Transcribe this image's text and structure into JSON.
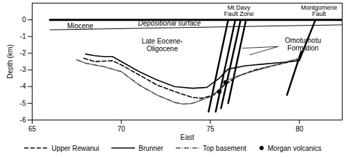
{
  "chart_data": {
    "type": "line",
    "x_label": "East",
    "y_label": "Depth (km)",
    "xlim": [
      65,
      82.4
    ],
    "ylim": [
      -6,
      1
    ],
    "xticks": [
      65,
      70,
      75,
      80
    ],
    "yticks": [
      0,
      -1,
      -2,
      -3,
      -4,
      -5,
      -6
    ],
    "grid": false,
    "series": [
      {
        "name": "Upper Rewanui",
        "color": "#000000",
        "line_style": "dashed",
        "type": "line",
        "x": [
          67.9,
          68.5,
          69.5,
          70,
          71,
          72,
          73,
          74,
          74.5,
          75.2,
          75.8,
          76.5,
          77.5,
          78.5,
          79.5,
          80
        ],
        "values": [
          -2.3,
          -2.5,
          -2.45,
          -2.7,
          -3.3,
          -3.9,
          -4.3,
          -4.65,
          -4.7,
          -4.5,
          -3.9,
          -3.4,
          -3.0,
          -2.75,
          -2.5,
          -2.4
        ]
      },
      {
        "name": "Brunner",
        "color": "#000000",
        "line_style": "solid",
        "type": "line",
        "x": [
          68,
          68.5,
          69,
          69.5,
          70,
          71,
          72,
          73,
          74,
          74.8,
          75.5,
          76,
          77,
          78,
          79,
          80
        ],
        "values": [
          -2.05,
          -2.15,
          -2.2,
          -2.2,
          -2.5,
          -3.1,
          -3.6,
          -4.0,
          -4.1,
          -4.05,
          -3.5,
          -2.95,
          -2.75,
          -2.65,
          -2.55,
          -2.45
        ]
      },
      {
        "name": "Top basement",
        "color": "#444444",
        "line_style": "dashdot",
        "type": "line",
        "x": [
          67.5,
          68,
          69,
          70,
          71,
          72,
          73,
          73.5,
          74,
          75,
          75.5,
          76,
          77,
          78,
          79,
          80
        ],
        "values": [
          -2.4,
          -2.6,
          -2.8,
          -3.1,
          -3.9,
          -4.5,
          -4.95,
          -5.05,
          -5.0,
          -4.6,
          -4.2,
          -3.6,
          -3.2,
          -2.9,
          -2.6,
          -2.3
        ]
      },
      {
        "name": "Morgan volcanics",
        "color": "#000000",
        "marker": "circle",
        "type": "scatter",
        "x": [
          75.5,
          75.85
        ],
        "values": [
          -4.3,
          -3.75
        ]
      }
    ],
    "boundaries": [
      {
        "label": "Depositional surface",
        "label_x": 72.7,
        "label_y": -0.2,
        "line_style": "bold",
        "x": [
          66,
          82.4
        ],
        "values": [
          0,
          0
        ]
      },
      {
        "line_style": "solid",
        "x": [
          66,
          82.4
        ],
        "values": [
          -0.6,
          -0.3
        ]
      }
    ],
    "faults": [
      {
        "label": "Mt Davy\nFault Zone",
        "label_x": 76.6,
        "label_y": 0.55,
        "lines": [
          [
            [
              74.9,
              -5.5
            ],
            [
              76.0,
              0
            ]
          ],
          [
            [
              75.3,
              -5.5
            ],
            [
              76.4,
              0
            ]
          ],
          [
            [
              75.6,
              -5.3
            ],
            [
              76.7,
              0
            ]
          ],
          [
            [
              76.0,
              -5.0
            ],
            [
              77.0,
              0
            ]
          ]
        ]
      },
      {
        "label": "Montgomerie\nFault",
        "label_x": 81.1,
        "label_y": 0.55,
        "lines": [
          [
            [
              79.3,
              -4.5
            ],
            [
              80.1,
              -1.9
            ]
          ],
          [
            [
              80.0,
              -2.4
            ],
            [
              80.9,
              0
            ]
          ]
        ]
      }
    ],
    "annotations": [
      {
        "text": "Miocene",
        "x": 67.7,
        "y": -0.35
      },
      {
        "text": "Late Eocene-\nOligocene",
        "x": 72.3,
        "y": -1.5
      },
      {
        "text": "Omotumotu\nFormation",
        "x": 80.2,
        "y": -1.45,
        "pointers": [
          [
            [
              78.8,
              -1.6
            ],
            [
              76.8,
              -1.7
            ]
          ],
          [
            [
              78.8,
              -1.6
            ],
            [
              77.2,
              -2.1
            ]
          ]
        ]
      }
    ]
  }
}
